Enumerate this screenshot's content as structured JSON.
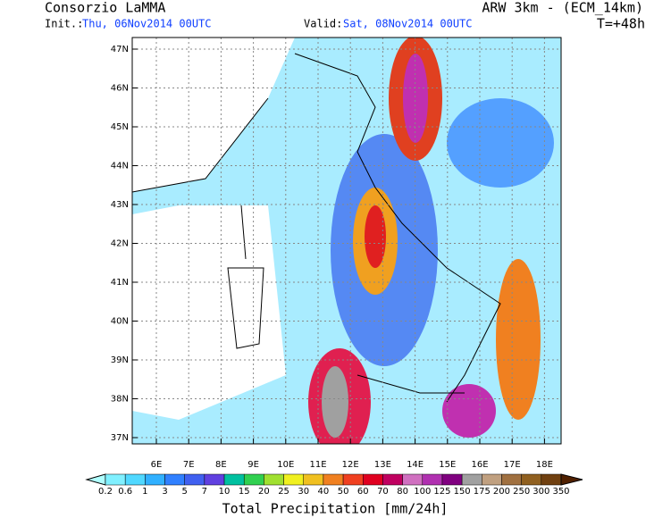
{
  "header": {
    "title": "Consorzio LaMMA",
    "model": "ARW 3km - (ECM_14km)",
    "init_label": "Init.:",
    "init_time": "Thu, 06Nov2014 00UTC",
    "valid_label": "Valid:",
    "valid_time": "Sat, 08Nov2014 00UTC",
    "lead": "T=+48h"
  },
  "map": {
    "lat_labels": [
      "47N",
      "46N",
      "45N",
      "44N",
      "43N",
      "42N",
      "41N",
      "40N",
      "39N",
      "38N",
      "37N"
    ],
    "lon_labels": [
      "6E",
      "7E",
      "8E",
      "9E",
      "10E",
      "11E",
      "12E",
      "13E",
      "14E",
      "15E",
      "16E",
      "17E",
      "18E"
    ]
  },
  "colorbar": {
    "title": "Total Precipitation [mm/24h]",
    "labels": [
      "0.2",
      "0.6",
      "1",
      "3",
      "5",
      "7",
      "10",
      "15",
      "20",
      "25",
      "30",
      "40",
      "50",
      "60",
      "70",
      "80",
      "100",
      "125",
      "150",
      "175",
      "200",
      "250",
      "300",
      "350"
    ],
    "colors": [
      "#b0ffff",
      "#80f0ff",
      "#50d8ff",
      "#30b0ff",
      "#3080ff",
      "#4060f0",
      "#6040e0",
      "#00c0a0",
      "#30d050",
      "#a0e030",
      "#f0f020",
      "#f0c020",
      "#f08020",
      "#f04020",
      "#e00020",
      "#c00060",
      "#d070c0",
      "#b030b0",
      "#800080",
      "#a0a0a0",
      "#c0a080",
      "#a07040",
      "#906020",
      "#704010",
      "#502000"
    ]
  }
}
